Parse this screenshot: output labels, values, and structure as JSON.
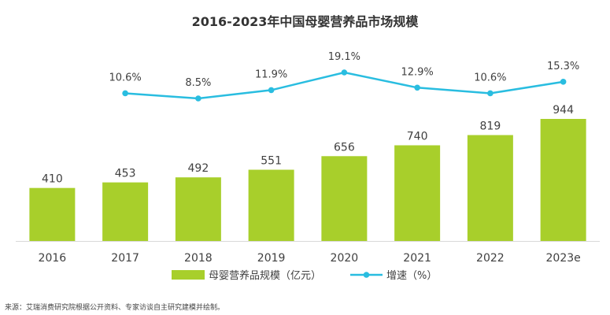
{
  "title": "2016-2023年中国母婴营养品市场规模",
  "source": "来源：艾瑞消费研究院根据公开资料、专家访谈自主研究建模并绘制。",
  "chart_data": {
    "type": "bar",
    "title": "2016-2023年中国母婴营养品市场规模",
    "categories": [
      "2016",
      "2017",
      "2018",
      "2019",
      "2020",
      "2021",
      "2022",
      "2023e"
    ],
    "series": [
      {
        "name": "母婴营养品规模（亿元）",
        "type": "bar",
        "color": "#a8cf2b",
        "values": [
          410,
          453,
          492,
          551,
          656,
          740,
          819,
          944
        ],
        "labels": [
          "410",
          "453",
          "492",
          "551",
          "656",
          "740",
          "819",
          "944"
        ]
      },
      {
        "name": "增速（%）",
        "type": "line",
        "color": "#29bde0",
        "values": [
          null,
          10.6,
          8.5,
          11.9,
          19.1,
          12.9,
          10.6,
          15.3
        ],
        "labels": [
          "",
          "10.6%",
          "8.5%",
          "11.9%",
          "19.1%",
          "12.9%",
          "10.6%",
          "15.3%"
        ]
      }
    ],
    "legend_position": "bottom",
    "grid": false
  }
}
